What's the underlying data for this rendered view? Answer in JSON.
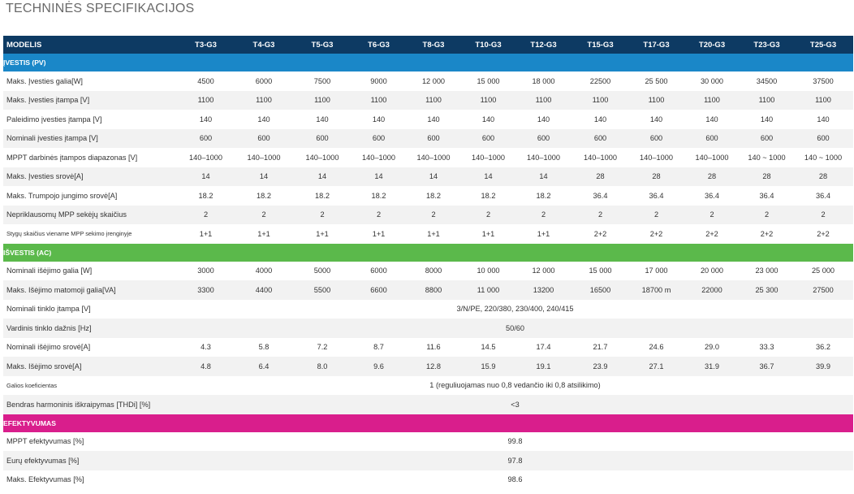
{
  "page_title": "TECHNINĖS SPECIFIKACIJOS",
  "header": {
    "label": "MODELIS",
    "models": [
      "T3-G3",
      "T4-G3",
      "T5-G3",
      "T6-G3",
      "T8-G3",
      "T10-G3",
      "T12-G3",
      "T15-G3",
      "T17-G3",
      "T20-G3",
      "T23-G3",
      "T25-G3"
    ]
  },
  "sections": {
    "input": "ĮVESTIS (PV)",
    "output": "IŠVESTIS (AC)",
    "efficiency": "EFEKTYVUMAS"
  },
  "input_rows": [
    {
      "label": "Maks. Įvesties galia[W]",
      "values": [
        "4500",
        "6000",
        "7500",
        "9000",
        "12 000",
        "15 000",
        "18 000",
        "22500",
        "25 500",
        "30 000",
        "34500",
        "37500"
      ]
    },
    {
      "label": "Maks. Įvesties įtampa [V]",
      "values": [
        "1100",
        "1100",
        "1100",
        "1100",
        "1100",
        "1100",
        "1100",
        "1100",
        "1100",
        "1100",
        "1100",
        "1100"
      ]
    },
    {
      "label": "Paleidimo įvesties įtampa [V]",
      "values": [
        "140",
        "140",
        "140",
        "140",
        "140",
        "140",
        "140",
        "140",
        "140",
        "140",
        "140",
        "140"
      ]
    },
    {
      "label": "Nominali įvesties įtampa [V]",
      "values": [
        "600",
        "600",
        "600",
        "600",
        "600",
        "600",
        "600",
        "600",
        "600",
        "600",
        "600",
        "600"
      ]
    },
    {
      "label": "MPPT darbinės įtampos diapazonas [V]",
      "values": [
        "140–1000",
        "140–1000",
        "140–1000",
        "140–1000",
        "140–1000",
        "140–1000",
        "140–1000",
        "140–1000",
        "140–1000",
        "140–1000",
        "140 ~ 1000",
        "140 ~ 1000"
      ]
    },
    {
      "label": "Maks. Įvesties srovė[A]",
      "values": [
        "14",
        "14",
        "14",
        "14",
        "14",
        "14",
        "14",
        "28",
        "28",
        "28",
        "28",
        "28"
      ]
    },
    {
      "label": "Maks. Trumpojo jungimo srovė[A]",
      "values": [
        "18.2",
        "18.2",
        "18.2",
        "18.2",
        "18.2",
        "18.2",
        "18.2",
        "36.4",
        "36.4",
        "36.4",
        "36.4",
        "36.4"
      ]
    },
    {
      "label": "Nepriklausomų MPP sekėjų skaičius",
      "values": [
        "2",
        "2",
        "2",
        "2",
        "2",
        "2",
        "2",
        "2",
        "2",
        "2",
        "2",
        "2"
      ]
    },
    {
      "label": "Stygų skaičius viename MPP sekimo įrenginyje",
      "small": true,
      "values": [
        "1+1",
        "1+1",
        "1+1",
        "1+1",
        "1+1",
        "1+1",
        "1+1",
        "2+2",
        "2+2",
        "2+2",
        "2+2",
        "2+2"
      ]
    }
  ],
  "output_rows": [
    {
      "label": "Nominali išėjimo galia [W]",
      "values": [
        "3000",
        "4000",
        "5000",
        "6000",
        "8000",
        "10 000",
        "12 000",
        "15 000",
        "17 000",
        "20 000",
        "23 000",
        "25 000"
      ]
    },
    {
      "label": "Maks. Išėjimo matomoji galia[VA]",
      "values": [
        "3300",
        "4400",
        "5500",
        "6600",
        "8800",
        "11 000",
        "13200",
        "16500",
        "18700 m",
        "22000",
        "25 300",
        "27500"
      ]
    },
    {
      "label": "Nominali tinklo įtampa [V]",
      "span": "3/N/PE, 220/380, 230/400, 240/415"
    },
    {
      "label": "Vardinis tinklo dažnis [Hz]",
      "span": "50/60"
    },
    {
      "label": "Nominali išėjimo srovė[A]",
      "values": [
        "4.3",
        "5.8",
        "7.2",
        "8.7",
        "11.6",
        "14.5",
        "17.4",
        "21.7",
        "24.6",
        "29.0",
        "33.3",
        "36.2"
      ]
    },
    {
      "label": "Maks. Išėjimo srovė[A]",
      "values": [
        "4.8",
        "6.4",
        "8.0",
        "9.6",
        "12.8",
        "15.9",
        "19.1",
        "23.9",
        "27.1",
        "31.9",
        "36.7",
        "39.9"
      ]
    },
    {
      "label": "Galios koeficientas",
      "small": true,
      "span": "1  (reguliuojamas  nuo  0,8 vedančio  iki  0,8  atsilikimo)"
    },
    {
      "label": "Bendras harmoninis iškraipymas [THDi] [%]",
      "span": "<3"
    }
  ],
  "efficiency_rows": [
    {
      "label": "MPPT efektyvumas [%]",
      "span": "99.8"
    },
    {
      "label": "Eurų efektyvumas [%]",
      "span": "97.8"
    },
    {
      "label": "Maks. Efektyvumas [%]",
      "span": "98.6"
    }
  ]
}
